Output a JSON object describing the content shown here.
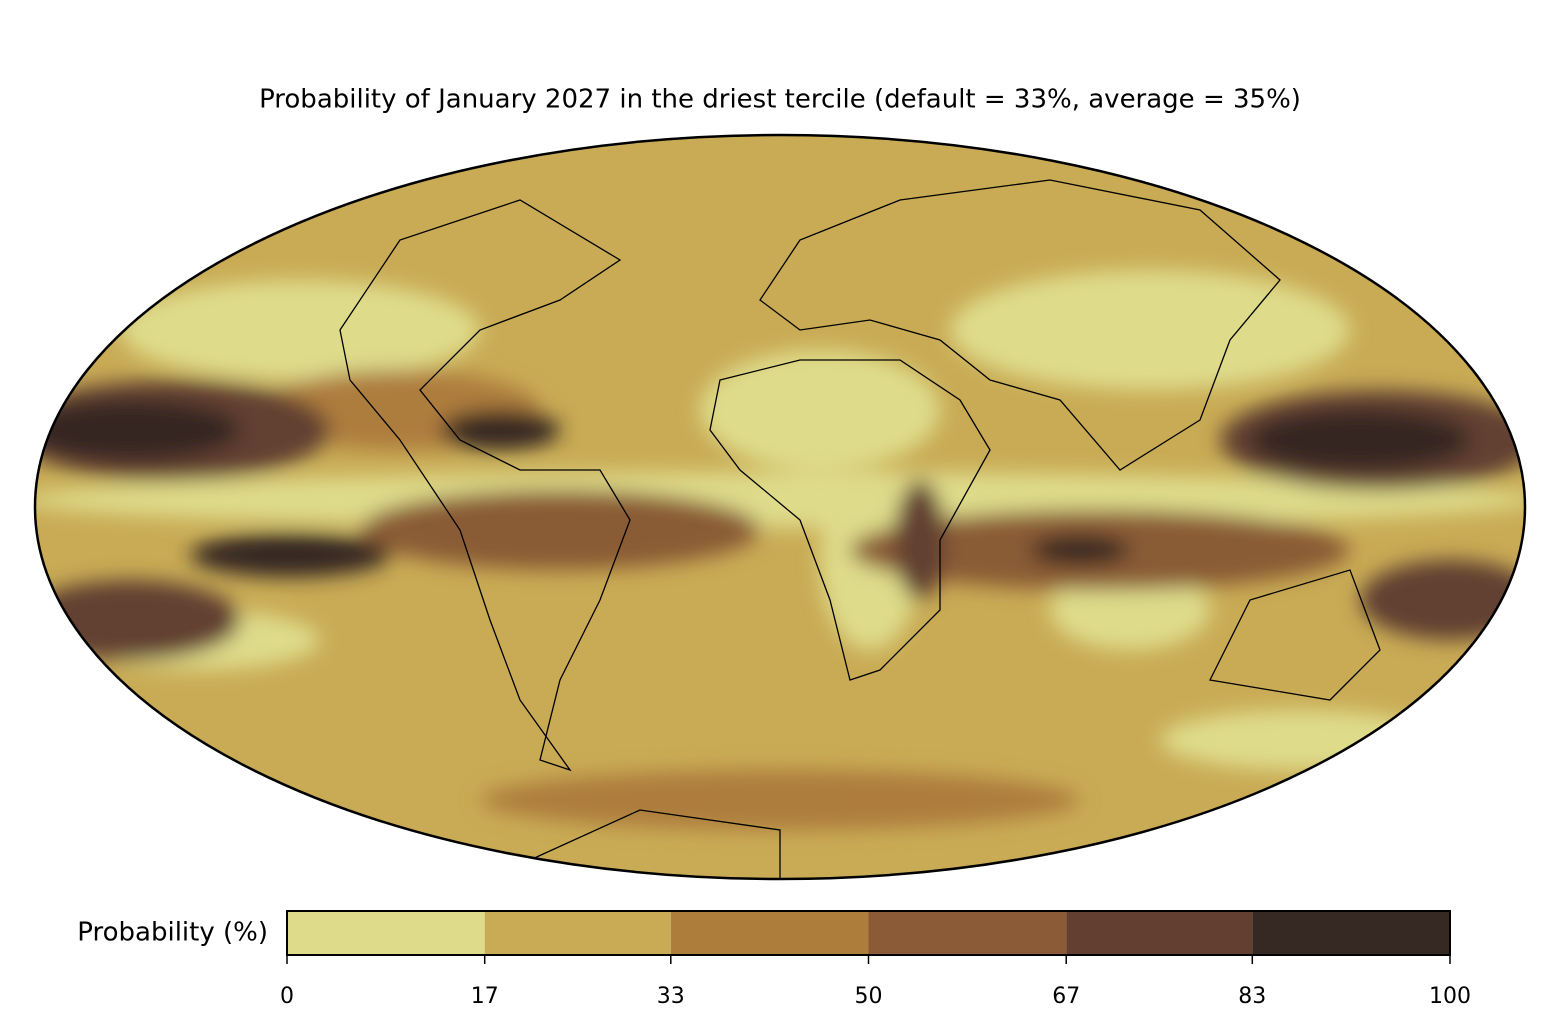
{
  "map": {
    "title": "Probability of January 2027 in the driest tercile (default = 33%, average = 35%)",
    "colorbar": {
      "label": "Probability (%)",
      "lim": [
        0,
        100
      ],
      "ticks": [
        0,
        17,
        33,
        50,
        67,
        83,
        100
      ],
      "colors": [
        "#dedc8b",
        "#c9ab55",
        "#ad7d3c",
        "#8a5b36",
        "#623f30",
        "#362822"
      ]
    }
  }
}
